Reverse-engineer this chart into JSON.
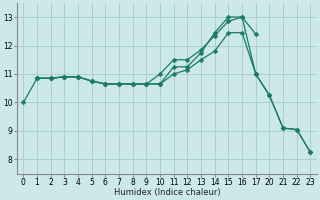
{
  "xlabel": "Humidex (Indice chaleur)",
  "bg_color": "#cce8e8",
  "grid_color": "#aacfcf",
  "line_color": "#1a7a6a",
  "xtick_labels": [
    "0",
    "1",
    "2",
    "3",
    "4",
    "5",
    "6",
    "7",
    "8",
    "9",
    "10",
    "11",
    "12",
    "13",
    "14",
    "15",
    "16",
    "17",
    "20",
    "21",
    "22",
    "23"
  ],
  "yticks": [
    8,
    9,
    10,
    11,
    12,
    13
  ],
  "ylim": [
    7.5,
    13.5
  ],
  "lines": [
    {
      "xi": [
        0,
        1,
        2,
        3,
        4,
        5,
        6,
        7,
        8,
        9,
        10,
        11,
        12,
        13,
        14,
        15,
        16,
        17,
        18,
        19,
        20,
        21
      ],
      "y": [
        10.0,
        10.85,
        10.85,
        10.9,
        10.9,
        10.75,
        10.65,
        10.65,
        10.65,
        10.65,
        10.65,
        11.25,
        11.25,
        11.75,
        12.45,
        13.0,
        13.0,
        11.0,
        10.25,
        9.1,
        9.05,
        8.25
      ]
    },
    {
      "xi": [
        1,
        2,
        3,
        4,
        5,
        6,
        7,
        8,
        9,
        10,
        11,
        12,
        13,
        14,
        15,
        16,
        17
      ],
      "y": [
        10.85,
        10.85,
        10.9,
        10.9,
        10.75,
        10.65,
        10.65,
        10.65,
        10.65,
        11.0,
        11.5,
        11.5,
        11.85,
        12.35,
        12.85,
        13.0,
        12.4
      ]
    },
    {
      "xi": [
        1,
        2,
        3,
        4,
        5,
        6,
        7,
        8,
        9,
        10,
        11,
        12,
        13,
        14,
        15,
        16,
        17,
        18,
        19,
        20,
        21
      ],
      "y": [
        10.85,
        10.85,
        10.9,
        10.9,
        10.75,
        10.65,
        10.65,
        10.65,
        10.65,
        10.65,
        11.0,
        11.15,
        11.5,
        11.8,
        12.45,
        12.45,
        11.0,
        10.25,
        9.1,
        9.05,
        8.25
      ]
    }
  ],
  "markersize": 2.5,
  "linewidth": 0.9,
  "xlabel_fontsize": 6.0,
  "tick_fontsize": 5.5
}
